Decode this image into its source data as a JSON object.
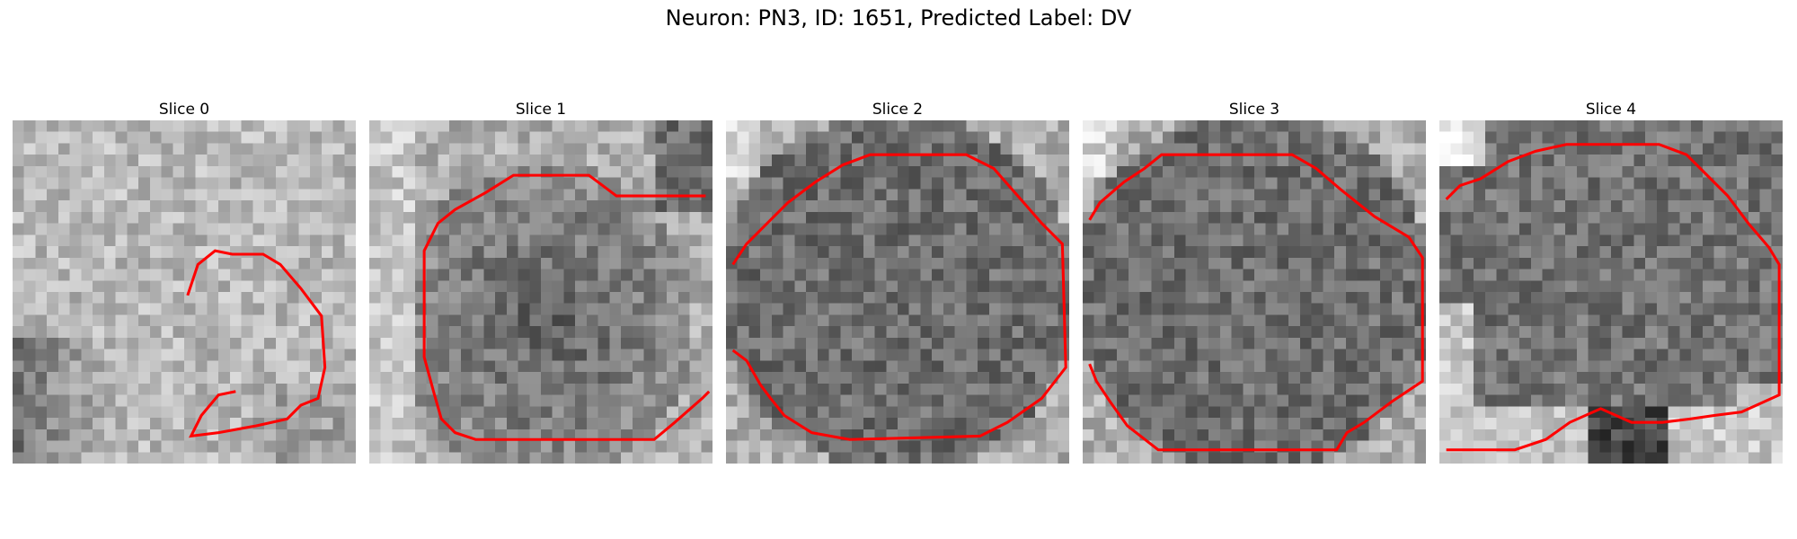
{
  "figure": {
    "title": "Neuron: PN3, ID: 1651, Predicted Label: DV"
  },
  "colors": {
    "contour": "#ff0000",
    "background": "#ffffff"
  },
  "slices": [
    {
      "title": "Slice 0",
      "style": "bright-texture",
      "contour": [
        [
          0.51,
          0.51
        ],
        [
          0.54,
          0.42
        ],
        [
          0.59,
          0.38
        ],
        [
          0.64,
          0.39
        ],
        [
          0.73,
          0.39
        ],
        [
          0.78,
          0.42
        ],
        [
          0.84,
          0.49
        ],
        [
          0.9,
          0.57
        ],
        [
          0.91,
          0.72
        ],
        [
          0.89,
          0.81
        ],
        [
          0.84,
          0.83
        ],
        [
          0.8,
          0.87
        ],
        [
          0.71,
          0.89
        ],
        [
          0.6,
          0.91
        ],
        [
          0.52,
          0.92
        ],
        [
          0.55,
          0.86
        ],
        [
          0.6,
          0.8
        ],
        [
          0.65,
          0.79
        ]
      ]
    },
    {
      "title": "Slice 1",
      "style": "dark-center",
      "contour": [
        [
          0.98,
          0.22
        ],
        [
          0.72,
          0.22
        ],
        [
          0.64,
          0.16
        ],
        [
          0.42,
          0.16
        ],
        [
          0.34,
          0.21
        ],
        [
          0.25,
          0.26
        ],
        [
          0.2,
          0.3
        ],
        [
          0.16,
          0.38
        ],
        [
          0.16,
          0.69
        ],
        [
          0.19,
          0.8
        ],
        [
          0.21,
          0.87
        ],
        [
          0.25,
          0.91
        ],
        [
          0.31,
          0.93
        ],
        [
          0.83,
          0.93
        ],
        [
          0.89,
          0.88
        ],
        [
          0.97,
          0.81
        ],
        [
          0.99,
          0.79
        ]
      ]
    },
    {
      "title": "Slice 2",
      "style": "dense-dark",
      "contour": [
        [
          0.02,
          0.42
        ],
        [
          0.06,
          0.36
        ],
        [
          0.12,
          0.3
        ],
        [
          0.18,
          0.24
        ],
        [
          0.26,
          0.18
        ],
        [
          0.34,
          0.13
        ],
        [
          0.42,
          0.1
        ],
        [
          0.7,
          0.1
        ],
        [
          0.78,
          0.14
        ],
        [
          0.85,
          0.22
        ],
        [
          0.92,
          0.3
        ],
        [
          0.98,
          0.36
        ],
        [
          0.99,
          0.72
        ],
        [
          0.92,
          0.81
        ],
        [
          0.82,
          0.88
        ],
        [
          0.74,
          0.92
        ],
        [
          0.36,
          0.93
        ],
        [
          0.25,
          0.91
        ],
        [
          0.17,
          0.86
        ],
        [
          0.13,
          0.81
        ],
        [
          0.1,
          0.77
        ],
        [
          0.06,
          0.7
        ],
        [
          0.02,
          0.67
        ]
      ]
    },
    {
      "title": "Slice 3",
      "style": "dense-dark",
      "contour": [
        [
          0.02,
          0.29
        ],
        [
          0.05,
          0.24
        ],
        [
          0.12,
          0.18
        ],
        [
          0.18,
          0.14
        ],
        [
          0.23,
          0.1
        ],
        [
          0.61,
          0.1
        ],
        [
          0.68,
          0.14
        ],
        [
          0.75,
          0.2
        ],
        [
          0.85,
          0.28
        ],
        [
          0.95,
          0.34
        ],
        [
          0.99,
          0.4
        ],
        [
          0.99,
          0.76
        ],
        [
          0.9,
          0.82
        ],
        [
          0.82,
          0.88
        ],
        [
          0.77,
          0.91
        ],
        [
          0.74,
          0.96
        ],
        [
          0.22,
          0.96
        ],
        [
          0.13,
          0.89
        ],
        [
          0.08,
          0.82
        ],
        [
          0.04,
          0.76
        ],
        [
          0.02,
          0.71
        ]
      ]
    },
    {
      "title": "Slice 4",
      "style": "bright-bottom",
      "contour": [
        [
          0.02,
          0.23
        ],
        [
          0.06,
          0.19
        ],
        [
          0.12,
          0.17
        ],
        [
          0.2,
          0.12
        ],
        [
          0.28,
          0.09
        ],
        [
          0.37,
          0.07
        ],
        [
          0.64,
          0.07
        ],
        [
          0.72,
          0.1
        ],
        [
          0.78,
          0.16
        ],
        [
          0.84,
          0.22
        ],
        [
          0.9,
          0.3
        ],
        [
          0.96,
          0.37
        ],
        [
          0.99,
          0.42
        ],
        [
          0.99,
          0.8
        ],
        [
          0.88,
          0.85
        ],
        [
          0.8,
          0.86
        ],
        [
          0.73,
          0.87
        ],
        [
          0.65,
          0.88
        ],
        [
          0.56,
          0.88
        ],
        [
          0.47,
          0.84
        ],
        [
          0.38,
          0.88
        ],
        [
          0.31,
          0.93
        ],
        [
          0.22,
          0.96
        ],
        [
          0.02,
          0.96
        ]
      ]
    }
  ]
}
